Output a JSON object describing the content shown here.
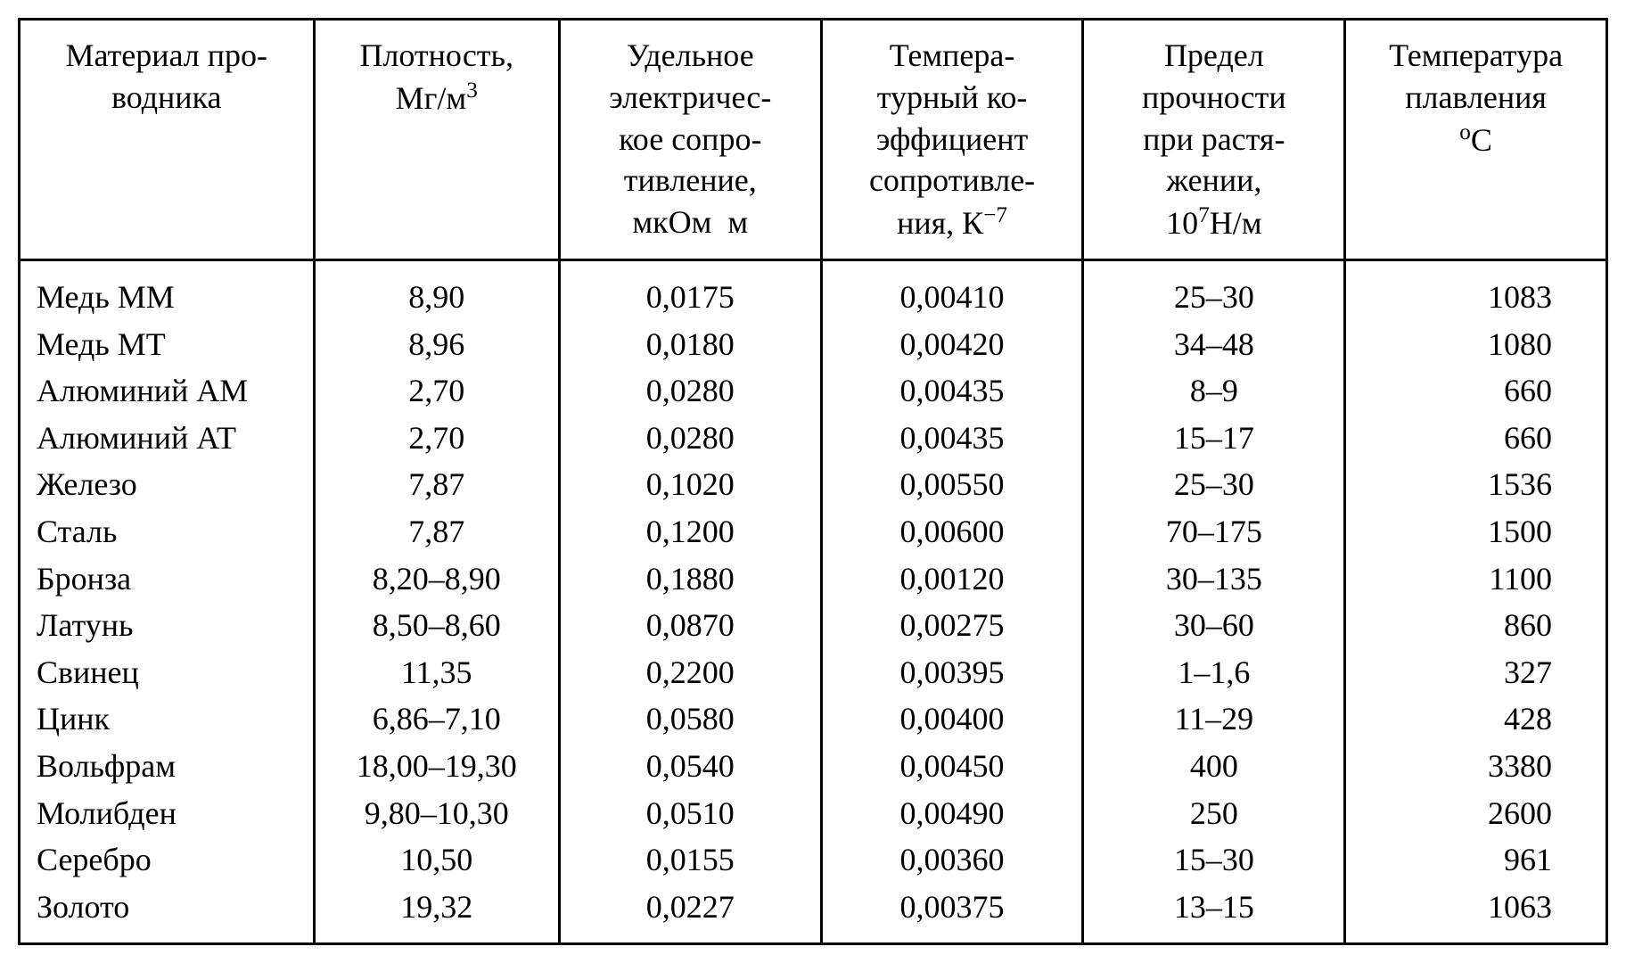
{
  "table": {
    "type": "table",
    "background_color": "#ffffff",
    "text_color": "#000000",
    "border_color": "#000000",
    "border_width": 3,
    "font_family": "Times New Roman",
    "font_size_pt": 28,
    "columns": [
      {
        "key": "material",
        "header": "Материал про-\nводника",
        "align": "left",
        "width_pct": 18
      },
      {
        "key": "density",
        "header": "Плотность,\nМг/м³",
        "align": "center",
        "width_pct": 15
      },
      {
        "key": "resistivity",
        "header": "Удельное\nэлектричес-\nкое сопро-\nтивление,\nмкОм м",
        "align": "center",
        "width_pct": 16
      },
      {
        "key": "tempcoef",
        "header": "Темпера-\nтурный ко-\nэффициент\nсопротивле-\nния, К⁻⁷",
        "align": "center",
        "width_pct": 16
      },
      {
        "key": "strength",
        "header": "Предел\nпрочности\nпри растя-\nжении,\n10⁷Н/м",
        "align": "center",
        "width_pct": 16
      },
      {
        "key": "melting",
        "header": "Температура\nплавления\n°С",
        "align": "right",
        "width_pct": 16
      }
    ],
    "headers": {
      "material": "Материал про-водника",
      "density_l1": "Плотность,",
      "density_l2": "Мг/м",
      "density_sup": "3",
      "resistivity_l1": "Удельное",
      "resistivity_l2": "электричес-",
      "resistivity_l3": "кое сопро-",
      "resistivity_l4": "тивление,",
      "resistivity_l5": "мкОм  м",
      "tempcoef_l1": "Темпера-",
      "tempcoef_l2": "турный ко-",
      "tempcoef_l3": "эффициент",
      "tempcoef_l4": "сопротивле-",
      "tempcoef_l5a": "ния, К",
      "tempcoef_sup": "−7",
      "strength_l1": "Предел",
      "strength_l2": "прочности",
      "strength_l3": "при растя-",
      "strength_l4": "жении,",
      "strength_l5a": "10",
      "strength_sup": "7",
      "strength_l5b": "Н/м",
      "melting_l1": "Температура",
      "melting_l2": "плавления",
      "melting_sup": "о",
      "melting_l3": "С"
    },
    "rows": [
      {
        "material": "Медь ММ",
        "density": "8,90",
        "resistivity": "0,0175",
        "tempcoef": "0,00410",
        "strength": "25–30",
        "melting": "1083"
      },
      {
        "material": "Медь МТ",
        "density": "8,96",
        "resistivity": "0,0180",
        "tempcoef": "0,00420",
        "strength": "34–48",
        "melting": "1080"
      },
      {
        "material": "Алюминий АМ",
        "density": "2,70",
        "resistivity": "0,0280",
        "tempcoef": "0,00435",
        "strength": "8–9",
        "melting": "660"
      },
      {
        "material": "Алюминий АТ",
        "density": "2,70",
        "resistivity": "0,0280",
        "tempcoef": "0,00435",
        "strength": "15–17",
        "melting": "660"
      },
      {
        "material": "Железо",
        "density": "7,87",
        "resistivity": "0,1020",
        "tempcoef": "0,00550",
        "strength": "25–30",
        "melting": "1536"
      },
      {
        "material": "Сталь",
        "density": "7,87",
        "resistivity": "0,1200",
        "tempcoef": "0,00600",
        "strength": "70–175",
        "melting": "1500"
      },
      {
        "material": "Бронза",
        "density": "8,20–8,90",
        "resistivity": "0,1880",
        "tempcoef": "0,00120",
        "strength": "30–135",
        "melting": "1100"
      },
      {
        "material": "Латунь",
        "density": "8,50–8,60",
        "resistivity": "0,0870",
        "tempcoef": "0,00275",
        "strength": "30–60",
        "melting": "860"
      },
      {
        "material": "Свинец",
        "density": "11,35",
        "resistivity": "0,2200",
        "tempcoef": "0,00395",
        "strength": "1–1,6",
        "melting": "327"
      },
      {
        "material": "Цинк",
        "density": "6,86–7,10",
        "resistivity": "0,0580",
        "tempcoef": "0,00400",
        "strength": "11–29",
        "melting": "428"
      },
      {
        "material": "Вольфрам",
        "density": "18,00–19,30",
        "resistivity": "0,0540",
        "tempcoef": "0,00450",
        "strength": "400",
        "melting": "3380"
      },
      {
        "material": "Молибден",
        "density": "9,80–10,30",
        "resistivity": "0,0510",
        "tempcoef": "0,00490",
        "strength": "250",
        "melting": "2600"
      },
      {
        "material": "Серебро",
        "density": "10,50",
        "resistivity": "0,0155",
        "tempcoef": "0,00360",
        "strength": "15–30",
        "melting": "961"
      },
      {
        "material": "Золото",
        "density": "19,32",
        "resistivity": "0,0227",
        "tempcoef": "0,00375",
        "strength": "13–15",
        "melting": "1063"
      }
    ]
  }
}
